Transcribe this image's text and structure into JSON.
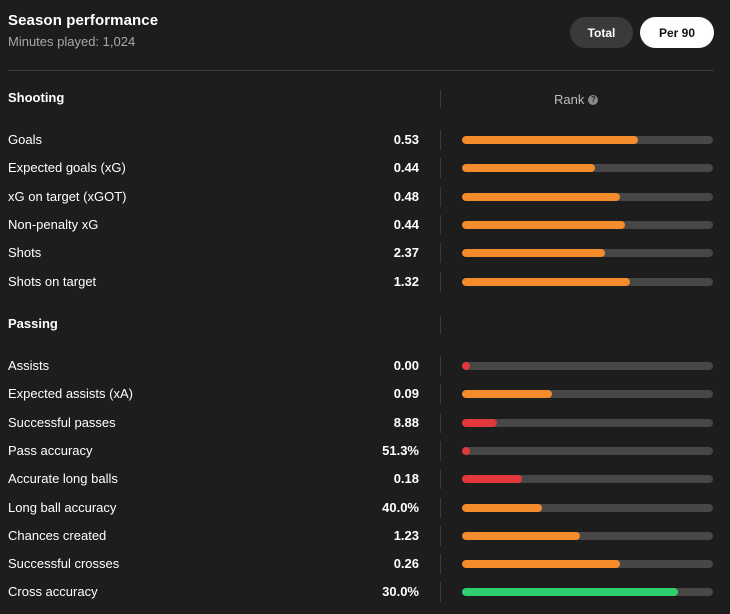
{
  "header": {
    "title": "Season performance",
    "subtitle": "Minutes played: 1,024"
  },
  "toggle": {
    "total_label": "Total",
    "per90_label": "Per 90",
    "selected": "Per 90"
  },
  "rank_label": "Rank",
  "colors": {
    "orange": "#f48c2c",
    "red": "#e0383c",
    "green": "#2fcf6e",
    "track": "#474747"
  },
  "sections": [
    {
      "title": "Shooting",
      "stats": [
        {
          "label": "Goals",
          "value": "0.53",
          "rank": 0.7,
          "color": "orange"
        },
        {
          "label": "Expected goals (xG)",
          "value": "0.44",
          "rank": 0.53,
          "color": "orange"
        },
        {
          "label": "xG on target (xGOT)",
          "value": "0.48",
          "rank": 0.63,
          "color": "orange"
        },
        {
          "label": "Non-penalty xG",
          "value": "0.44",
          "rank": 0.65,
          "color": "orange"
        },
        {
          "label": "Shots",
          "value": "2.37",
          "rank": 0.57,
          "color": "orange"
        },
        {
          "label": "Shots on target",
          "value": "1.32",
          "rank": 0.67,
          "color": "orange"
        }
      ]
    },
    {
      "title": "Passing",
      "stats": [
        {
          "label": "Assists",
          "value": "0.00",
          "rank": 0.03,
          "color": "red"
        },
        {
          "label": "Expected assists (xA)",
          "value": "0.09",
          "rank": 0.36,
          "color": "orange"
        },
        {
          "label": "Successful passes",
          "value": "8.88",
          "rank": 0.14,
          "color": "red"
        },
        {
          "label": "Pass accuracy",
          "value": "51.3%",
          "rank": 0.03,
          "color": "red"
        },
        {
          "label": "Accurate long balls",
          "value": "0.18",
          "rank": 0.24,
          "color": "red"
        },
        {
          "label": "Long ball accuracy",
          "value": "40.0%",
          "rank": 0.32,
          "color": "orange"
        },
        {
          "label": "Chances created",
          "value": "1.23",
          "rank": 0.47,
          "color": "orange"
        },
        {
          "label": "Successful crosses",
          "value": "0.26",
          "rank": 0.63,
          "color": "orange"
        },
        {
          "label": "Cross accuracy",
          "value": "30.0%",
          "rank": 0.86,
          "color": "green"
        }
      ]
    }
  ]
}
